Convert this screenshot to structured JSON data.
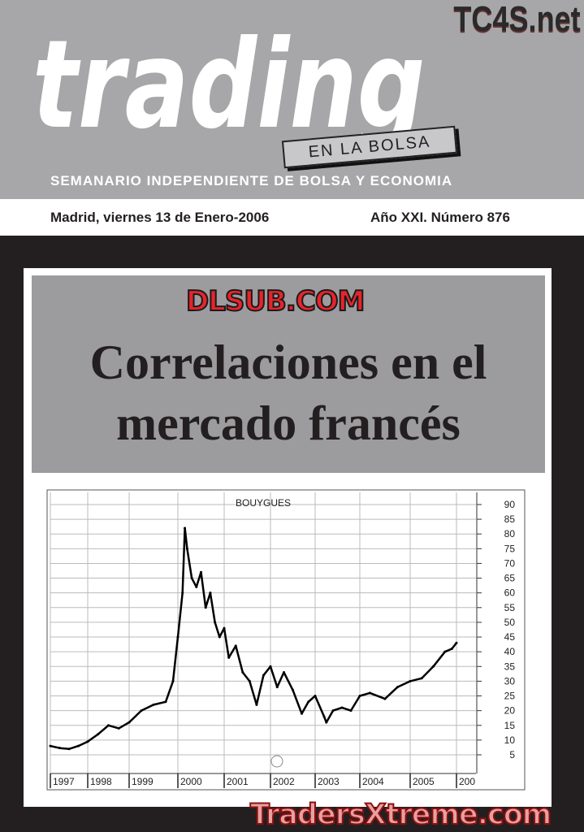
{
  "masthead": {
    "logo": "trading",
    "tagline": "EN LA BOLSA",
    "subtitle": "SEMANARIO INDEPENDIENTE DE BOLSA Y ECONOMIA",
    "watermark": "TC4S.net"
  },
  "dateline": {
    "date": "Madrid, viernes 13 de Enero-2006",
    "issue": "Año XXI. Número 876"
  },
  "headline": {
    "text": "Correlaciones en el mercado francés",
    "watermark": "DLSUB.COM"
  },
  "footer_watermark": "TradersXtreme.com",
  "chart_data": {
    "type": "line",
    "title": "BOUYGUES",
    "x_tick_labels": [
      "1997",
      "1998",
      "1999",
      "2000",
      "2001",
      "2002",
      "2003",
      "2004",
      "2005",
      "200"
    ],
    "y_tick_labels": [
      "90",
      "85",
      "80",
      "75",
      "70",
      "65",
      "60",
      "55",
      "50",
      "45",
      "40",
      "35",
      "30",
      "25",
      "20",
      "15",
      "10",
      "5"
    ],
    "ylim": [
      0,
      92
    ],
    "grid": true,
    "y_axis_side": "right",
    "x": [
      1997.0,
      1997.25,
      1997.5,
      1997.75,
      1998.0,
      1998.25,
      1998.5,
      1998.75,
      1999.0,
      1999.25,
      1999.5,
      1999.75,
      1999.9,
      2000.0,
      2000.1,
      2000.15,
      2000.2,
      2000.3,
      2000.4,
      2000.5,
      2000.6,
      2000.7,
      2000.8,
      2000.9,
      2001.0,
      2001.1,
      2001.25,
      2001.4,
      2001.55,
      2001.7,
      2001.85,
      2002.0,
      2002.15,
      2002.3,
      2002.5,
      2002.7,
      2002.85,
      2003.0,
      2003.2,
      2003.25,
      2003.4,
      2003.6,
      2003.8,
      2004.0,
      2004.2,
      2004.5,
      2004.75,
      2005.0,
      2005.25,
      2005.5,
      2005.75,
      2005.9,
      2006.0
    ],
    "values": [
      8,
      7.3,
      7,
      8,
      9.5,
      12,
      15,
      14,
      16,
      20,
      22,
      23,
      30,
      45,
      60,
      82,
      75,
      65,
      62,
      67,
      55,
      60,
      50,
      45,
      48,
      38,
      42,
      33,
      30,
      22,
      32,
      35,
      28,
      33,
      27,
      19,
      23,
      25,
      18,
      16,
      20,
      21,
      20,
      25,
      26,
      24,
      28,
      30,
      31,
      35,
      40,
      41,
      43
    ]
  }
}
